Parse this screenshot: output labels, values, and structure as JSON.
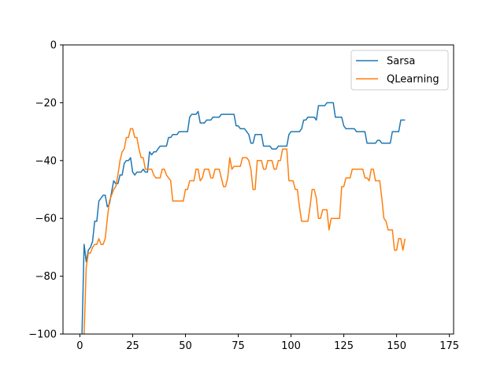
{
  "chart_data": {
    "type": "line",
    "title": "",
    "xlabel": "",
    "ylabel": "",
    "xlim": [
      -8,
      177
    ],
    "ylim": [
      -100,
      0
    ],
    "x_ticks": [
      0,
      25,
      50,
      75,
      100,
      125,
      150,
      175
    ],
    "y_ticks": [
      -100,
      -80,
      -60,
      -40,
      -20,
      0
    ],
    "x_tick_labels": [
      "0",
      "25",
      "50",
      "75",
      "100",
      "125",
      "150",
      "175"
    ],
    "y_tick_labels": [
      "−100",
      "−80",
      "−60",
      "−40",
      "−20",
      "0"
    ],
    "grid": false,
    "legend_position": "top-right",
    "series": [
      {
        "name": "Sarsa",
        "color": "#1f77b4",
        "points": [
          [
            1,
            -100
          ],
          [
            2,
            -69
          ],
          [
            3,
            -75
          ],
          [
            4,
            -71
          ],
          [
            5,
            -70
          ],
          [
            6,
            -68
          ],
          [
            7,
            -61
          ],
          [
            8,
            -61
          ],
          [
            9,
            -54
          ],
          [
            10,
            -53
          ],
          [
            11,
            -52
          ],
          [
            12,
            -52
          ],
          [
            13,
            -56
          ],
          [
            14,
            -55
          ],
          [
            15,
            -51
          ],
          [
            16,
            -47
          ],
          [
            17,
            -48
          ],
          [
            18,
            -48
          ],
          [
            19,
            -45
          ],
          [
            20,
            -45
          ],
          [
            21,
            -41
          ],
          [
            22,
            -40
          ],
          [
            23,
            -40
          ],
          [
            24,
            -39
          ],
          [
            25,
            -44
          ],
          [
            26,
            -45
          ],
          [
            27,
            -44
          ],
          [
            28,
            -44
          ],
          [
            29,
            -44
          ],
          [
            30,
            -43
          ],
          [
            31,
            -44
          ],
          [
            32,
            -44
          ],
          [
            33,
            -37
          ],
          [
            34,
            -38
          ],
          [
            35,
            -37
          ],
          [
            36,
            -37
          ],
          [
            37,
            -36
          ],
          [
            38,
            -35
          ],
          [
            39,
            -35
          ],
          [
            40,
            -35
          ],
          [
            41,
            -35
          ],
          [
            42,
            -32
          ],
          [
            43,
            -32
          ],
          [
            44,
            -31
          ],
          [
            45,
            -31
          ],
          [
            46,
            -31
          ],
          [
            47,
            -30
          ],
          [
            48,
            -30
          ],
          [
            49,
            -30
          ],
          [
            50,
            -30
          ],
          [
            51,
            -30
          ],
          [
            52,
            -25
          ],
          [
            53,
            -24
          ],
          [
            54,
            -24
          ],
          [
            55,
            -24
          ],
          [
            56,
            -23
          ],
          [
            57,
            -27
          ],
          [
            58,
            -27
          ],
          [
            59,
            -27
          ],
          [
            60,
            -26
          ],
          [
            61,
            -26
          ],
          [
            62,
            -26
          ],
          [
            63,
            -25
          ],
          [
            64,
            -25
          ],
          [
            65,
            -25
          ],
          [
            66,
            -25
          ],
          [
            67,
            -24
          ],
          [
            68,
            -24
          ],
          [
            69,
            -24
          ],
          [
            70,
            -24
          ],
          [
            71,
            -24
          ],
          [
            72,
            -24
          ],
          [
            73,
            -24
          ],
          [
            74,
            -28
          ],
          [
            75,
            -28
          ],
          [
            76,
            -29
          ],
          [
            77,
            -29
          ],
          [
            78,
            -29
          ],
          [
            79,
            -30
          ],
          [
            80,
            -31
          ],
          [
            81,
            -34
          ],
          [
            82,
            -34
          ],
          [
            83,
            -31
          ],
          [
            84,
            -31
          ],
          [
            85,
            -31
          ],
          [
            86,
            -31
          ],
          [
            87,
            -35
          ],
          [
            88,
            -35
          ],
          [
            89,
            -35
          ],
          [
            90,
            -35
          ],
          [
            91,
            -36
          ],
          [
            92,
            -36
          ],
          [
            93,
            -36
          ],
          [
            94,
            -35
          ],
          [
            95,
            -35
          ],
          [
            96,
            -35
          ],
          [
            97,
            -35
          ],
          [
            98,
            -35
          ],
          [
            99,
            -31
          ],
          [
            100,
            -30
          ],
          [
            101,
            -30
          ],
          [
            102,
            -30
          ],
          [
            103,
            -30
          ],
          [
            104,
            -30
          ],
          [
            105,
            -29
          ],
          [
            106,
            -26
          ],
          [
            107,
            -26
          ],
          [
            108,
            -25
          ],
          [
            109,
            -25
          ],
          [
            110,
            -25
          ],
          [
            111,
            -25
          ],
          [
            112,
            -26
          ],
          [
            113,
            -21
          ],
          [
            114,
            -21
          ],
          [
            115,
            -21
          ],
          [
            116,
            -21
          ],
          [
            117,
            -20
          ],
          [
            118,
            -20
          ],
          [
            119,
            -20
          ],
          [
            120,
            -20
          ],
          [
            121,
            -25
          ],
          [
            122,
            -25
          ],
          [
            123,
            -25
          ],
          [
            124,
            -25
          ],
          [
            125,
            -28
          ],
          [
            126,
            -29
          ],
          [
            127,
            -29
          ],
          [
            128,
            -29
          ],
          [
            129,
            -29
          ],
          [
            130,
            -29
          ],
          [
            131,
            -30
          ],
          [
            132,
            -30
          ],
          [
            133,
            -30
          ],
          [
            134,
            -30
          ],
          [
            135,
            -30
          ],
          [
            136,
            -34
          ],
          [
            137,
            -34
          ],
          [
            138,
            -34
          ],
          [
            139,
            -34
          ],
          [
            140,
            -34
          ],
          [
            141,
            -33
          ],
          [
            142,
            -33
          ],
          [
            143,
            -34
          ],
          [
            144,
            -34
          ],
          [
            145,
            -34
          ],
          [
            146,
            -34
          ],
          [
            147,
            -34
          ],
          [
            148,
            -30
          ],
          [
            149,
            -30
          ],
          [
            150,
            -30
          ],
          [
            151,
            -30
          ],
          [
            152,
            -26
          ],
          [
            153,
            -26
          ],
          [
            154,
            -26
          ]
        ]
      },
      {
        "name": "QLearning",
        "color": "#ff7f0e",
        "points": [
          [
            2,
            -100
          ],
          [
            3,
            -77
          ],
          [
            4,
            -72
          ],
          [
            5,
            -72
          ],
          [
            6,
            -70
          ],
          [
            7,
            -69
          ],
          [
            8,
            -69
          ],
          [
            9,
            -67
          ],
          [
            10,
            -69
          ],
          [
            11,
            -69
          ],
          [
            12,
            -67
          ],
          [
            13,
            -60
          ],
          [
            14,
            -54
          ],
          [
            15,
            -52
          ],
          [
            16,
            -50
          ],
          [
            17,
            -49
          ],
          [
            18,
            -45
          ],
          [
            19,
            -40
          ],
          [
            20,
            -37
          ],
          [
            21,
            -36
          ],
          [
            22,
            -32
          ],
          [
            23,
            -32
          ],
          [
            24,
            -29
          ],
          [
            25,
            -29
          ],
          [
            26,
            -32
          ],
          [
            27,
            -32
          ],
          [
            28,
            -36
          ],
          [
            29,
            -39
          ],
          [
            30,
            -39
          ],
          [
            31,
            -43
          ],
          [
            32,
            -43
          ],
          [
            33,
            -43
          ],
          [
            34,
            -43
          ],
          [
            35,
            -45
          ],
          [
            36,
            -46
          ],
          [
            37,
            -46
          ],
          [
            38,
            -46
          ],
          [
            39,
            -43
          ],
          [
            40,
            -43
          ],
          [
            41,
            -45
          ],
          [
            42,
            -46
          ],
          [
            43,
            -47
          ],
          [
            44,
            -54
          ],
          [
            45,
            -54
          ],
          [
            46,
            -54
          ],
          [
            47,
            -54
          ],
          [
            48,
            -54
          ],
          [
            49,
            -54
          ],
          [
            50,
            -50
          ],
          [
            51,
            -50
          ],
          [
            52,
            -47
          ],
          [
            53,
            -47
          ],
          [
            54,
            -47
          ],
          [
            55,
            -43
          ],
          [
            56,
            -43
          ],
          [
            57,
            -47
          ],
          [
            58,
            -46
          ],
          [
            59,
            -43
          ],
          [
            60,
            -43
          ],
          [
            61,
            -43
          ],
          [
            62,
            -46
          ],
          [
            63,
            -46
          ],
          [
            64,
            -43
          ],
          [
            65,
            -43
          ],
          [
            66,
            -43
          ],
          [
            67,
            -46
          ],
          [
            68,
            -49
          ],
          [
            69,
            -49
          ],
          [
            70,
            -46
          ],
          [
            71,
            -39
          ],
          [
            72,
            -43
          ],
          [
            73,
            -42
          ],
          [
            74,
            -42
          ],
          [
            75,
            -42
          ],
          [
            76,
            -42
          ],
          [
            77,
            -39
          ],
          [
            78,
            -39
          ],
          [
            79,
            -39
          ],
          [
            80,
            -40
          ],
          [
            81,
            -43
          ],
          [
            82,
            -50
          ],
          [
            83,
            -50
          ],
          [
            84,
            -40
          ],
          [
            85,
            -40
          ],
          [
            86,
            -40
          ],
          [
            87,
            -43
          ],
          [
            88,
            -43
          ],
          [
            89,
            -40
          ],
          [
            90,
            -40
          ],
          [
            91,
            -40
          ],
          [
            92,
            -43
          ],
          [
            93,
            -43
          ],
          [
            94,
            -40
          ],
          [
            95,
            -40
          ],
          [
            96,
            -36
          ],
          [
            97,
            -36
          ],
          [
            98,
            -36
          ],
          [
            99,
            -47
          ],
          [
            100,
            -47
          ],
          [
            101,
            -47
          ],
          [
            102,
            -50
          ],
          [
            103,
            -50
          ],
          [
            104,
            -56
          ],
          [
            105,
            -61
          ],
          [
            106,
            -61
          ],
          [
            107,
            -61
          ],
          [
            108,
            -61
          ],
          [
            109,
            -56
          ],
          [
            110,
            -50
          ],
          [
            111,
            -50
          ],
          [
            112,
            -53
          ],
          [
            113,
            -60
          ],
          [
            114,
            -60
          ],
          [
            115,
            -57
          ],
          [
            116,
            -57
          ],
          [
            117,
            -57
          ],
          [
            118,
            -64
          ],
          [
            119,
            -60
          ],
          [
            120,
            -60
          ],
          [
            121,
            -60
          ],
          [
            122,
            -60
          ],
          [
            123,
            -60
          ],
          [
            124,
            -49
          ],
          [
            125,
            -49
          ],
          [
            126,
            -46
          ],
          [
            127,
            -46
          ],
          [
            128,
            -46
          ],
          [
            129,
            -43
          ],
          [
            130,
            -43
          ],
          [
            131,
            -43
          ],
          [
            132,
            -43
          ],
          [
            133,
            -43
          ],
          [
            134,
            -43
          ],
          [
            135,
            -46
          ],
          [
            136,
            -46
          ],
          [
            137,
            -47
          ],
          [
            138,
            -43
          ],
          [
            139,
            -43
          ],
          [
            140,
            -47
          ],
          [
            141,
            -47
          ],
          [
            142,
            -47
          ],
          [
            143,
            -53
          ],
          [
            144,
            -60
          ],
          [
            145,
            -61
          ],
          [
            146,
            -64
          ],
          [
            147,
            -64
          ],
          [
            148,
            -64
          ],
          [
            149,
            -71
          ],
          [
            150,
            -71
          ],
          [
            151,
            -67
          ],
          [
            152,
            -67
          ],
          [
            153,
            -71
          ],
          [
            154,
            -67
          ]
        ]
      }
    ]
  }
}
